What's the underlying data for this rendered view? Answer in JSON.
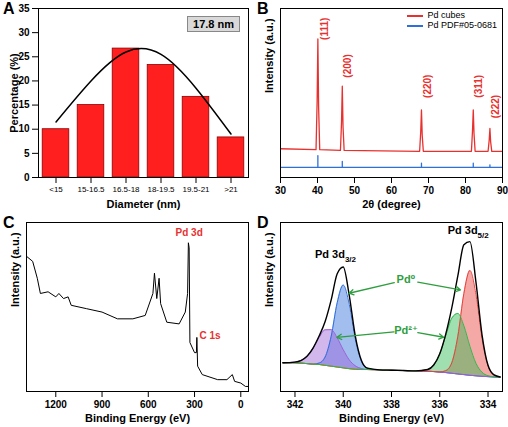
{
  "chart_data": [
    {
      "panel_label": "A",
      "type": "bar",
      "xlabel": "Diameter (nm)",
      "ylabel": "Percentage (%)",
      "categories": [
        "<15",
        "15-16.5",
        "16.5-18",
        "18-19.5",
        "19.5-21",
        ">21"
      ],
      "series": [
        {
          "type": "bar",
          "color": "#ff1f1f",
          "values": [
            10,
            15,
            26.7,
            23.3,
            16.7,
            8.3
          ]
        },
        {
          "type": "line",
          "color": "#000000",
          "values": [
            11.5,
            20,
            26,
            25.5,
            18.5,
            9
          ]
        }
      ],
      "ylim": [
        0,
        35
      ],
      "yticks": [
        0,
        5,
        10,
        15,
        20,
        25,
        30,
        35
      ],
      "annotations": [
        {
          "text": "17.8 nm"
        }
      ]
    },
    {
      "panel_label": "B",
      "type": "line",
      "xlabel": "2θ (degree)",
      "ylabel": "Intensity (a.u.)",
      "xlim": [
        30,
        90
      ],
      "xticks": [
        30,
        40,
        50,
        60,
        70,
        80,
        90
      ],
      "ylim": [
        0,
        100
      ],
      "tick_labels": "x",
      "legend": "top-right",
      "series": [
        {
          "name": "Pd cubes",
          "color": "#e8312f",
          "x": [
            30,
            39.6,
            39.9,
            40.1,
            40.3,
            40.6,
            46.2,
            46.5,
            46.7,
            46.9,
            47.2,
            67.6,
            67.9,
            68.1,
            68.3,
            68.6,
            81.6,
            81.9,
            82.1,
            82.3,
            82.6,
            86.1,
            86.4,
            86.6,
            86.8,
            87.1,
            90
          ],
          "values": [
            17,
            16.5,
            45,
            82,
            42,
            16.5,
            16,
            33,
            54,
            30,
            16,
            15.5,
            27,
            40,
            25,
            15.5,
            15.5,
            28,
            40,
            26,
            15.5,
            15.5,
            22,
            29,
            21,
            15.5,
            15.5
          ]
        },
        {
          "name": "Pd PDF#05-0681",
          "color": "#2f6fdc",
          "x": [
            30,
            40.1,
            40.1,
            40.1,
            46.7,
            46.7,
            46.7,
            68.1,
            68.1,
            68.1,
            82.1,
            82.1,
            82.1,
            86.6,
            86.6,
            86.6,
            90
          ],
          "values": [
            6,
            6,
            13,
            6,
            6,
            9.5,
            6,
            6,
            8.5,
            6,
            6,
            8.5,
            6,
            6,
            7.5,
            6,
            6
          ]
        }
      ],
      "annotations": [
        {
          "text": "(111)",
          "x": 42,
          "y": 88,
          "color": "#e8312f"
        },
        {
          "text": "(200)",
          "x": 48.3,
          "y": 66,
          "color": "#e8312f"
        },
        {
          "text": "(220)",
          "x": 69.7,
          "y": 54,
          "color": "#e8312f"
        },
        {
          "text": "(311)",
          "x": 83.7,
          "y": 54,
          "color": "#e8312f"
        },
        {
          "text": "(222)",
          "x": 88.2,
          "y": 42,
          "color": "#e8312f"
        }
      ]
    },
    {
      "panel_label": "C",
      "type": "line",
      "xlabel": "Binding Energy (eV)",
      "ylabel": "Intensity (a.u.)",
      "xlim": [
        1390,
        -50
      ],
      "xticks": [
        1200,
        900,
        600,
        300,
        0
      ],
      "ylim": [
        0,
        100
      ],
      "tick_labels": "x",
      "color": "#000000",
      "x": [
        1390,
        1350,
        1320,
        1300,
        1250,
        1200,
        1180,
        1150,
        1120,
        1100,
        1000,
        900,
        800,
        700,
        620,
        570,
        560,
        545,
        530,
        520,
        480,
        400,
        360,
        345,
        340,
        335,
        330,
        300,
        288,
        285,
        280,
        250,
        150,
        90,
        55,
        40,
        0,
        -30,
        -50
      ],
      "values": [
        80,
        77,
        67,
        58,
        59,
        56,
        58,
        55,
        56,
        51,
        49,
        47,
        43,
        43,
        45,
        58,
        70,
        55,
        67,
        52,
        41,
        40,
        47,
        58,
        88,
        85,
        29,
        23,
        23,
        32,
        15,
        10,
        7,
        7,
        10,
        6,
        5,
        3,
        3
      ],
      "annotations": [
        {
          "text": "Pd 3d",
          "x": 335,
          "y": 94,
          "color": "#e8312f"
        },
        {
          "text": "C 1s",
          "x": 200,
          "y": 33,
          "color": "#e8312f"
        }
      ]
    },
    {
      "panel_label": "D",
      "type": "area",
      "xlabel": "Binding Energy (eV)",
      "ylabel": "Intensity (a.u.)",
      "xlim": [
        342.6,
        333.4
      ],
      "xticks": [
        342,
        340,
        338,
        336,
        334
      ],
      "ylim": [
        0,
        100
      ],
      "tick_labels": "x",
      "x": [
        342.5,
        342,
        341.5,
        341.25,
        341,
        340.75,
        340.5,
        340.25,
        340,
        339.75,
        339.5,
        339.25,
        339,
        338.5,
        338,
        337.5,
        337,
        336.5,
        336.25,
        336,
        335.75,
        335.5,
        335.25,
        335,
        334.75,
        334.5,
        334.25,
        334,
        333.75,
        333.5
      ],
      "background": {
        "color": "#c9a43a",
        "values": [
          17,
          17,
          16.5,
          16.2,
          16,
          15.5,
          15,
          14.5,
          14,
          13.5,
          13.2,
          13,
          13,
          12.8,
          12.6,
          12.4,
          12.2,
          12,
          11.8,
          11.5,
          11.2,
          10.8,
          10.4,
          10,
          9.6,
          9.3,
          9,
          8.8,
          8.6,
          8.5
        ]
      },
      "series": [
        {
          "type": "area",
          "color": "#2f6fdc",
          "values": [
            17,
            17,
            16.5,
            16.2,
            16.8,
            20.4,
            32.6,
            52.5,
            63,
            51.5,
            30.8,
            17.9,
            13.8,
            12.8,
            12.6,
            12.4,
            12.2,
            12,
            11.8,
            11.5,
            11.2,
            10.8,
            10.4,
            10,
            9.6,
            9.3,
            9,
            8.8,
            8.6,
            8.5
          ]
        },
        {
          "type": "area",
          "color": "#9b5fd6",
          "values": [
            17,
            17.4,
            20.9,
            25.7,
            32,
            36.5,
            36.6,
            31.7,
            24.7,
            18.7,
            15.2,
            13.6,
            13,
            12.8,
            12.6,
            12.4,
            12.2,
            12,
            11.8,
            11.5,
            11.2,
            10.8,
            10.4,
            10,
            9.6,
            9.3,
            9,
            8.8,
            8.6,
            8.5
          ]
        },
        {
          "type": "area",
          "color": "#e8413c",
          "values": [
            17,
            17,
            16.5,
            16.2,
            16,
            15.5,
            15,
            14.5,
            14,
            13.5,
            13.2,
            13,
            13,
            12.8,
            12.6,
            12.4,
            12.2,
            12,
            11.8,
            11.6,
            12.3,
            17,
            32.7,
            58,
            71.6,
            57.3,
            31.3,
            15,
            9.7,
            8.6
          ]
        },
        {
          "type": "area",
          "color": "#2db84d",
          "values": [
            17,
            17,
            16.5,
            16.2,
            16,
            15.5,
            15,
            14.5,
            14,
            13.5,
            13.2,
            13,
            13,
            12.8,
            12.6,
            12.4,
            12.2,
            13,
            15.7,
            22.2,
            33,
            43.4,
            46.2,
            38.8,
            26.7,
            16.7,
            11.4,
            9.3,
            8.7,
            8.5
          ]
        },
        {
          "type": "line",
          "color": "#000000",
          "values": [
            17,
            17.4,
            20.9,
            25.7,
            32.8,
            41.4,
            54.2,
            69.7,
            73.7,
            56.7,
            32.8,
            18.5,
            13.8,
            12.8,
            12.6,
            12.4,
            12.2,
            13,
            15.7,
            22.3,
            34.1,
            49.6,
            68.5,
            86.8,
            88.7,
            64.7,
            33.7,
            15.5,
            9.8,
            8.6
          ]
        }
      ],
      "annotations": [
        {
          "text": "Pd 3d",
          "sub": "3/2",
          "x": 340.3,
          "y": 80,
          "color": "#000000"
        },
        {
          "text": "Pd 3d",
          "sub": "5/2",
          "x": 334.8,
          "y": 94,
          "color": "#000000"
        },
        {
          "text": "Pd⁰",
          "x": 337.4,
          "y": 66,
          "color": "#2e9e3e",
          "arrows": [
            [
              339.8,
              58
            ],
            [
              335.1,
              60
            ]
          ]
        },
        {
          "text": "Pd²⁺",
          "x": 337.4,
          "y": 36,
          "color": "#2e9e3e",
          "arrows": [
            [
              340.3,
              32
            ],
            [
              335.8,
              32
            ]
          ]
        }
      ]
    }
  ]
}
